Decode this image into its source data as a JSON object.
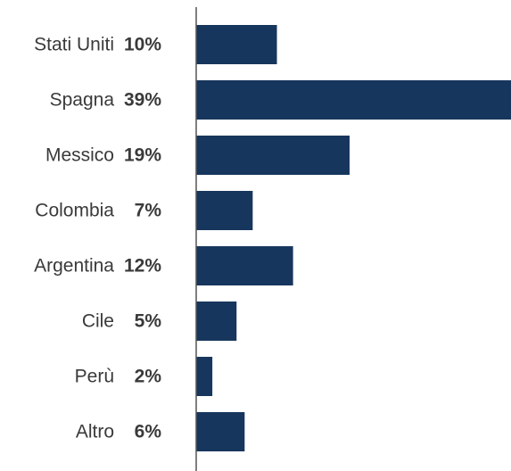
{
  "chart_data": {
    "type": "bar",
    "orientation": "horizontal",
    "categories": [
      "Stati Uniti",
      "Spagna",
      "Messico",
      "Colombia",
      "Argentina",
      "Cile",
      "Perù",
      "Altro"
    ],
    "values": [
      10,
      39,
      19,
      7,
      12,
      5,
      2,
      6
    ],
    "value_labels": [
      "10%",
      "39%",
      "19%",
      "7%",
      "12%",
      "5%",
      "2%",
      "6%"
    ],
    "unit": "%",
    "xlim": [
      0,
      39
    ],
    "grid": false,
    "legend": "none",
    "colors": {
      "bar": "#17365d",
      "axis": "#555555",
      "text": "#3a3a3a"
    }
  }
}
